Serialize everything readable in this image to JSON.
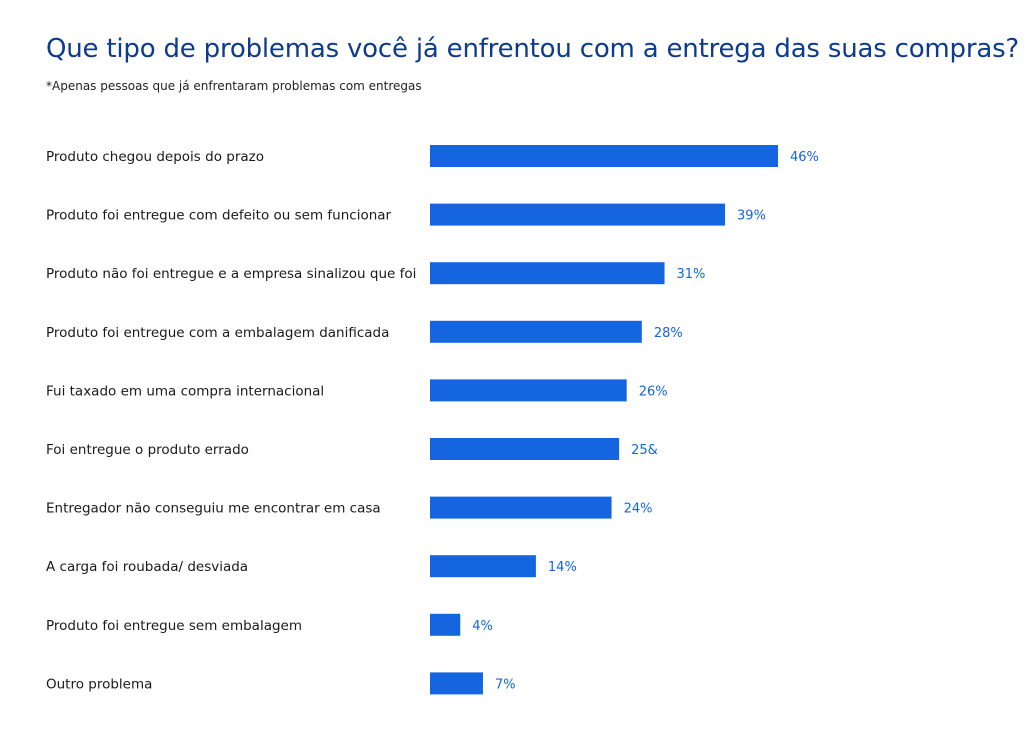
{
  "header": {
    "title": "Que tipo de problemas você já enfrentou com a entrega das suas compras?",
    "subtitle": "*Apenas pessoas que já enfrentaram problemas com entregas"
  },
  "colors": {
    "bar": "#1565e0",
    "value_text": "#1565e0",
    "title": "#0d3c8c"
  },
  "chart_data": {
    "type": "bar",
    "orientation": "horizontal",
    "title": "Que tipo de problemas você já enfrentou com a entrega das suas compras?",
    "subtitle": "*Apenas pessoas que já enfrentaram problemas com entregas",
    "categories": [
      "Produto chegou depois do prazo",
      "Produto foi entregue com defeito ou sem funcionar",
      "Produto não foi entregue e a empresa sinalizou que foi",
      "Produto foi entregue com a embalagem danificada",
      "Fui taxado em uma compra internacional",
      "Foi entregue o produto errado",
      "Entregador não conseguiu me encontrar em casa",
      "A carga foi roubada/ desviada",
      "Produto foi entregue sem embalagem",
      "Outro problema"
    ],
    "values": [
      46,
      39,
      31,
      28,
      26,
      25,
      24,
      14,
      4,
      7
    ],
    "value_labels": [
      "46%",
      "39%",
      "31%",
      "28%",
      "26%",
      "25&",
      "24%",
      "14%",
      "4%",
      "7%"
    ],
    "xlim": [
      0,
      46
    ],
    "grid": false,
    "legend": "none"
  }
}
